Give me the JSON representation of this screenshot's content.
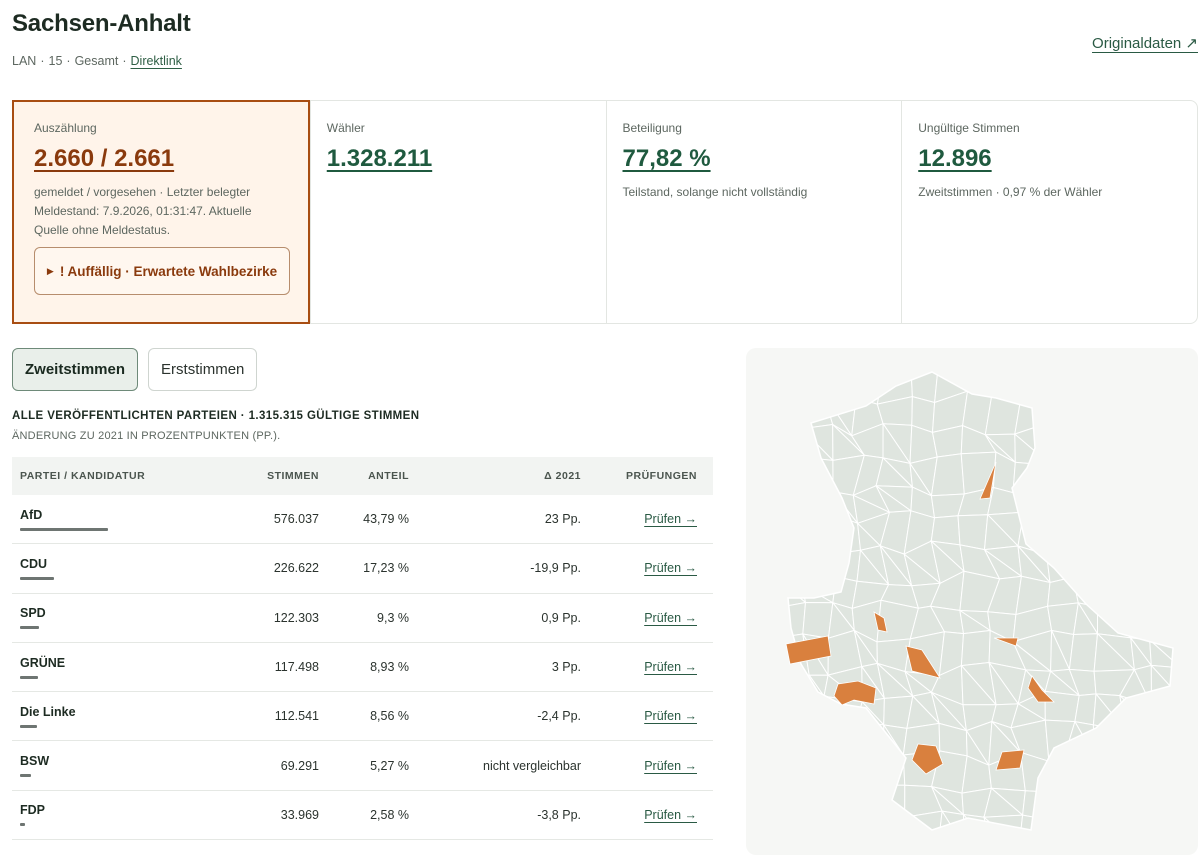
{
  "header": {
    "title": "Sachsen-Anhalt",
    "meta": [
      "LAN",
      "15",
      "Gesamt"
    ],
    "direct_link": "Direktlink",
    "original_link": "Originaldaten ↗"
  },
  "stats": {
    "count": {
      "label": "Auszählung",
      "value": "2.660 / 2.661",
      "sub": "gemeldet / vorgesehen · Letzter belegter Meldestand: 7.9.2026, 01:31:47. Aktuelle Quelle ohne Meldestatus.",
      "alert_button": "! Auffällig · Erwartete Wahlbezirke"
    },
    "voters": {
      "label": "Wähler",
      "value": "1.328.211"
    },
    "turnout": {
      "label": "Beteiligung",
      "value": "77,82 %",
      "sub": "Teilstand, solange nicht vollständig"
    },
    "invalid": {
      "label": "Ungültige Stimmen",
      "value": "12.896",
      "sub": "Zweitstimmen · 0,97 % der Wähler"
    }
  },
  "tabs": [
    "Zweitstimmen",
    "Erststimmen"
  ],
  "results": {
    "title": "ALLE VERÖFFENTLICHTEN PARTEIEN · 1.315.315 GÜLTIGE STIMMEN",
    "subtitle": "ÄNDERUNG ZU 2021 IN PROZENTPUNKTEN (PP.).",
    "columns": [
      "PARTEI / KANDIDATUR",
      "STIMMEN",
      "ANTEIL",
      "Δ 2021",
      "PRÜFUNGEN"
    ],
    "rows": [
      {
        "party": "AfD",
        "votes": "576.037",
        "share": "43,79 %",
        "share_value": 43.79,
        "delta": "23 Pp.",
        "check": "Prüfen →"
      },
      {
        "party": "CDU",
        "votes": "226.622",
        "share": "17,23 %",
        "share_value": 17.23,
        "delta": "-19,9 Pp.",
        "check": "Prüfen →"
      },
      {
        "party": "SPD",
        "votes": "122.303",
        "share": "9,3 %",
        "share_value": 9.3,
        "delta": "0,9 Pp.",
        "check": "Prüfen →"
      },
      {
        "party": "GRÜNE",
        "votes": "117.498",
        "share": "8,93 %",
        "share_value": 8.93,
        "delta": "3 Pp.",
        "check": "Prüfen →"
      },
      {
        "party": "Die Linke",
        "votes": "112.541",
        "share": "8,56 %",
        "share_value": 8.56,
        "delta": "-2,4 Pp.",
        "check": "Prüfen →"
      },
      {
        "party": "BSW",
        "votes": "69.291",
        "share": "5,27 %",
        "share_value": 5.27,
        "delta": "nicht vergleichbar",
        "check": "Prüfen →"
      },
      {
        "party": "FDP",
        "votes": "33.969",
        "share": "2,58 %",
        "share_value": 2.58,
        "delta": "-3,8 Pp.",
        "check": "Prüfen →"
      }
    ]
  },
  "map": {
    "base_color": "#dfe5df",
    "border_color": "#ffffff",
    "highlight_color": "#d9803e"
  }
}
